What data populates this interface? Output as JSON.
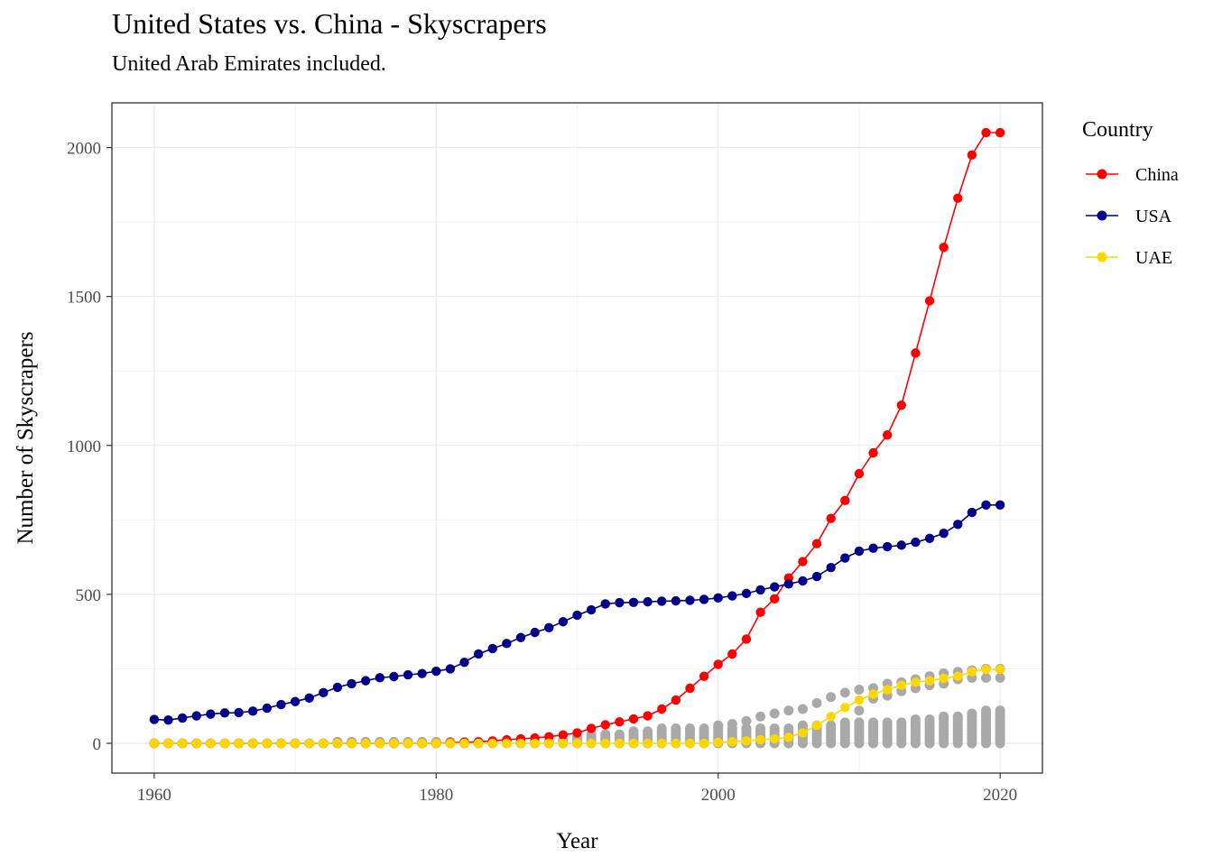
{
  "chart_data": {
    "type": "line",
    "title": "United States vs. China - Skyscrapers",
    "subtitle": "United Arab Emirates included.",
    "xlabel": "Year",
    "ylabel": "Number of Skyscrapers",
    "xlim": [
      1957,
      2023
    ],
    "ylim": [
      -100,
      2150
    ],
    "x_ticks": [
      1960,
      1980,
      2000,
      2020
    ],
    "y_ticks": [
      0,
      500,
      1000,
      1500,
      2000
    ],
    "grid": true,
    "legend": {
      "title": "Country",
      "position": "right"
    },
    "x": [
      1960,
      1961,
      1962,
      1963,
      1964,
      1965,
      1966,
      1967,
      1968,
      1969,
      1970,
      1971,
      1972,
      1973,
      1974,
      1975,
      1976,
      1977,
      1978,
      1979,
      1980,
      1981,
      1982,
      1983,
      1984,
      1985,
      1986,
      1987,
      1988,
      1989,
      1990,
      1991,
      1992,
      1993,
      1994,
      1995,
      1996,
      1997,
      1998,
      1999,
      2000,
      2001,
      2002,
      2003,
      2004,
      2005,
      2006,
      2007,
      2008,
      2009,
      2010,
      2011,
      2012,
      2013,
      2014,
      2015,
      2016,
      2017,
      2018,
      2019,
      2020
    ],
    "series": [
      {
        "name": "China",
        "color": "#ff0000",
        "values": [
          0,
          0,
          0,
          0,
          0,
          0,
          0,
          0,
          0,
          0,
          0,
          0,
          0,
          0,
          0,
          0,
          0,
          0,
          0,
          0,
          0,
          2,
          3,
          5,
          8,
          12,
          15,
          18,
          22,
          28,
          35,
          50,
          62,
          72,
          82,
          92,
          115,
          145,
          185,
          225,
          265,
          300,
          350,
          440,
          485,
          555,
          610,
          670,
          755,
          815,
          905,
          975,
          1035,
          1135,
          1310,
          1485,
          1665,
          1830,
          1975,
          2050,
          2050
        ]
      },
      {
        "name": "USA",
        "color": "#00008b",
        "values": [
          80,
          78,
          85,
          92,
          98,
          102,
          103,
          108,
          118,
          130,
          140,
          152,
          170,
          188,
          200,
          210,
          220,
          224,
          230,
          234,
          242,
          250,
          272,
          300,
          318,
          335,
          355,
          372,
          388,
          408,
          430,
          448,
          468,
          472,
          473,
          475,
          477,
          478,
          480,
          483,
          488,
          495,
          503,
          515,
          525,
          535,
          545,
          560,
          590,
          622,
          645,
          655,
          660,
          665,
          675,
          688,
          705,
          735,
          775,
          800,
          800
        ]
      },
      {
        "name": "UAE",
        "color": "#ffd700",
        "values": [
          0,
          0,
          0,
          0,
          0,
          0,
          0,
          0,
          0,
          0,
          0,
          0,
          0,
          0,
          0,
          0,
          0,
          0,
          0,
          0,
          0,
          0,
          0,
          0,
          0,
          0,
          0,
          0,
          0,
          0,
          0,
          0,
          0,
          0,
          0,
          0,
          0,
          0,
          0,
          0,
          3,
          5,
          8,
          12,
          15,
          20,
          35,
          60,
          90,
          120,
          145,
          165,
          180,
          195,
          205,
          210,
          218,
          225,
          240,
          248,
          248
        ]
      }
    ],
    "background_points": {
      "color": "#a9a9a9",
      "description_years": [
        1960,
        2020
      ],
      "columns": [
        {
          "year": 1960,
          "values": [
            0
          ]
        },
        {
          "year": 1961,
          "values": [
            0
          ]
        },
        {
          "year": 1962,
          "values": [
            0
          ]
        },
        {
          "year": 1963,
          "values": [
            0
          ]
        },
        {
          "year": 1964,
          "values": [
            0
          ]
        },
        {
          "year": 1965,
          "values": [
            0
          ]
        },
        {
          "year": 1966,
          "values": [
            0
          ]
        },
        {
          "year": 1967,
          "values": [
            0
          ]
        },
        {
          "year": 1968,
          "values": [
            0
          ]
        },
        {
          "year": 1969,
          "values": [
            0
          ]
        },
        {
          "year": 1970,
          "values": [
            0
          ]
        },
        {
          "year": 1971,
          "values": [
            0
          ]
        },
        {
          "year": 1972,
          "values": [
            0
          ]
        },
        {
          "year": 1973,
          "values": [
            0,
            5
          ]
        },
        {
          "year": 1974,
          "values": [
            0,
            5
          ]
        },
        {
          "year": 1975,
          "values": [
            0,
            5
          ]
        },
        {
          "year": 1976,
          "values": [
            0,
            5
          ]
        },
        {
          "year": 1977,
          "values": [
            0,
            5
          ]
        },
        {
          "year": 1978,
          "values": [
            0,
            5
          ]
        },
        {
          "year": 1979,
          "values": [
            0,
            5
          ]
        },
        {
          "year": 1980,
          "values": [
            0,
            5
          ]
        },
        {
          "year": 1981,
          "values": [
            0,
            5
          ]
        },
        {
          "year": 1982,
          "values": [
            0,
            5
          ]
        },
        {
          "year": 1983,
          "values": [
            0,
            5
          ]
        },
        {
          "year": 1984,
          "values": [
            0,
            5
          ]
        },
        {
          "year": 1985,
          "values": [
            0,
            5
          ]
        },
        {
          "year": 1986,
          "values": [
            0,
            5
          ]
        },
        {
          "year": 1987,
          "values": [
            0,
            5
          ]
        },
        {
          "year": 1988,
          "values": [
            0,
            5
          ]
        },
        {
          "year": 1989,
          "values": [
            0,
            10
          ]
        },
        {
          "year": 1990,
          "values": [
            0,
            10,
            20
          ]
        },
        {
          "year": 1991,
          "values": [
            0,
            10,
            20,
            30
          ]
        },
        {
          "year": 1992,
          "values": [
            0,
            10,
            20,
            30
          ]
        },
        {
          "year": 1993,
          "values": [
            0,
            10,
            20,
            30
          ]
        },
        {
          "year": 1994,
          "values": [
            0,
            10,
            20,
            30,
            40
          ]
        },
        {
          "year": 1995,
          "values": [
            0,
            10,
            20,
            30,
            40
          ]
        },
        {
          "year": 1996,
          "values": [
            0,
            10,
            20,
            30,
            40,
            50
          ]
        },
        {
          "year": 1997,
          "values": [
            0,
            10,
            20,
            30,
            40,
            50
          ]
        },
        {
          "year": 1998,
          "values": [
            0,
            10,
            20,
            30,
            40,
            50
          ]
        },
        {
          "year": 1999,
          "values": [
            0,
            10,
            20,
            30,
            40,
            50
          ]
        },
        {
          "year": 2000,
          "values": [
            0,
            10,
            20,
            30,
            40,
            50,
            60
          ]
        },
        {
          "year": 2001,
          "values": [
            0,
            10,
            20,
            30,
            40,
            50,
            65
          ]
        },
        {
          "year": 2002,
          "values": [
            0,
            10,
            20,
            30,
            40,
            50,
            75
          ]
        },
        {
          "year": 2003,
          "values": [
            0,
            10,
            20,
            30,
            40,
            50,
            90
          ]
        },
        {
          "year": 2004,
          "values": [
            0,
            10,
            20,
            30,
            40,
            50,
            100
          ]
        },
        {
          "year": 2005,
          "values": [
            0,
            10,
            20,
            30,
            40,
            50,
            110
          ]
        },
        {
          "year": 2006,
          "values": [
            0,
            10,
            20,
            30,
            40,
            50,
            60,
            115
          ]
        },
        {
          "year": 2007,
          "values": [
            0,
            10,
            20,
            30,
            40,
            50,
            60,
            135
          ]
        },
        {
          "year": 2008,
          "values": [
            0,
            10,
            20,
            30,
            40,
            50,
            60,
            155
          ]
        },
        {
          "year": 2009,
          "values": [
            0,
            10,
            20,
            30,
            40,
            50,
            60,
            70,
            170
          ]
        },
        {
          "year": 2010,
          "values": [
            0,
            10,
            20,
            30,
            40,
            50,
            60,
            70,
            110,
            180
          ]
        },
        {
          "year": 2011,
          "values": [
            0,
            10,
            20,
            30,
            40,
            50,
            60,
            70,
            150,
            185
          ]
        },
        {
          "year": 2012,
          "values": [
            0,
            10,
            20,
            30,
            40,
            50,
            60,
            70,
            160,
            200
          ]
        },
        {
          "year": 2013,
          "values": [
            0,
            10,
            20,
            30,
            40,
            50,
            60,
            70,
            175,
            205
          ]
        },
        {
          "year": 2014,
          "values": [
            0,
            10,
            20,
            30,
            40,
            50,
            60,
            70,
            80,
            185,
            215
          ]
        },
        {
          "year": 2015,
          "values": [
            0,
            10,
            20,
            30,
            40,
            50,
            60,
            70,
            80,
            195,
            225
          ]
        },
        {
          "year": 2016,
          "values": [
            0,
            10,
            20,
            30,
            40,
            50,
            60,
            70,
            80,
            90,
            200,
            235
          ]
        },
        {
          "year": 2017,
          "values": [
            0,
            10,
            20,
            30,
            40,
            50,
            60,
            70,
            80,
            90,
            215,
            240
          ]
        },
        {
          "year": 2018,
          "values": [
            0,
            10,
            20,
            30,
            40,
            50,
            60,
            70,
            80,
            90,
            100,
            220,
            245
          ]
        },
        {
          "year": 2019,
          "values": [
            0,
            10,
            20,
            30,
            40,
            50,
            60,
            70,
            80,
            90,
            100,
            110,
            220,
            250
          ]
        },
        {
          "year": 2020,
          "values": [
            0,
            10,
            20,
            30,
            40,
            50,
            60,
            70,
            80,
            90,
            100,
            110,
            220,
            250
          ]
        }
      ]
    }
  }
}
